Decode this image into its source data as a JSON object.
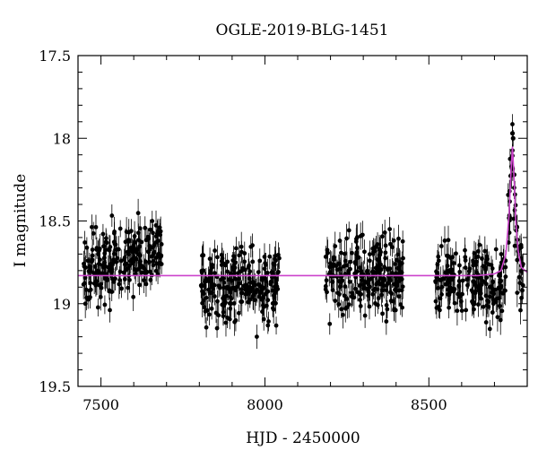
{
  "chart_data": {
    "type": "scatter",
    "title": "OGLE-2019-BLG-1451",
    "xlabel": "HJD - 2450000",
    "ylabel": "I magnitude",
    "xlim": [
      7430,
      8800
    ],
    "ylim": [
      19.5,
      17.5
    ],
    "y_inverted": true,
    "x_ticks": [
      7500,
      8000,
      8500
    ],
    "x_tick_labels": [
      "7500",
      "8000",
      "8500"
    ],
    "y_ticks": [
      17.5,
      18,
      18.5,
      19,
      19.5
    ],
    "y_tick_labels": [
      "17.5",
      "18",
      "18.5",
      "19",
      "19.5"
    ],
    "seasons": [
      {
        "x_start": 7445,
        "x_end": 7685,
        "mean_mag": 18.8
      },
      {
        "x_start": 7805,
        "x_end": 8045,
        "mean_mag": 18.88
      },
      {
        "x_start": 8185,
        "x_end": 8425,
        "mean_mag": 18.82
      },
      {
        "x_start": 8520,
        "x_end": 8790,
        "mean_mag": 18.86
      }
    ],
    "peak": {
      "x": 8755,
      "mag": 17.97
    },
    "model": {
      "name": "model",
      "color": "#cc44cc",
      "baseline_mag": 18.83,
      "peak_x": 8755,
      "peak_mag": 18.05,
      "points": [
        [
          7430,
          18.83
        ],
        [
          8650,
          18.83
        ],
        [
          8700,
          18.82
        ],
        [
          8720,
          18.8
        ],
        [
          8735,
          18.7
        ],
        [
          8745,
          18.45
        ],
        [
          8750,
          18.22
        ],
        [
          8755,
          18.05
        ],
        [
          8760,
          18.25
        ],
        [
          8765,
          18.5
        ],
        [
          8772,
          18.68
        ],
        [
          8782,
          18.78
        ],
        [
          8800,
          18.81
        ]
      ]
    },
    "point_color": "#000000",
    "grid": false
  }
}
